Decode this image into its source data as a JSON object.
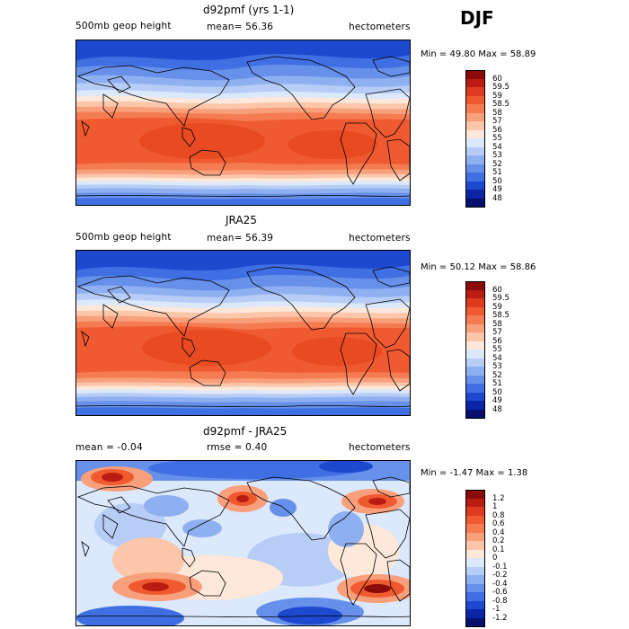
{
  "season": "DJF",
  "panels": [
    {
      "title": "d92pmf (yrs 1-1)",
      "left_label": "500mb geop height",
      "center_label": "mean=  56.36",
      "right_label": "hectometers",
      "stats": "Min =  49.80 Max =  58.89",
      "colorbar": {
        "labels": [
          "60",
          "59.5",
          "59",
          "58.5",
          "58",
          "57",
          "56",
          "55",
          "54",
          "53",
          "52",
          "51",
          "50",
          "49",
          "48"
        ],
        "colors": [
          "#8b0a0a",
          "#b81c12",
          "#de3a1f",
          "#f05a30",
          "#f57c52",
          "#f8a07c",
          "#fbc6aa",
          "#fde8da",
          "#dce8fb",
          "#b7cdf6",
          "#8fb0f0",
          "#6690ea",
          "#3f6fe2",
          "#1d49cf",
          "#0c24a6",
          "#070f6e"
        ]
      }
    },
    {
      "title": "JRA25",
      "left_label": "500mb geop height",
      "center_label": "mean=  56.39",
      "right_label": "hectometers",
      "stats": "Min =  50.12 Max =  58.86",
      "colorbar": {
        "labels": [
          "60",
          "59.5",
          "59",
          "58.5",
          "58",
          "57",
          "56",
          "55",
          "54",
          "53",
          "52",
          "51",
          "50",
          "49",
          "48"
        ],
        "colors": [
          "#8b0a0a",
          "#b81c12",
          "#de3a1f",
          "#f05a30",
          "#f57c52",
          "#f8a07c",
          "#fbc6aa",
          "#fde8da",
          "#dce8fb",
          "#b7cdf6",
          "#8fb0f0",
          "#6690ea",
          "#3f6fe2",
          "#1d49cf",
          "#0c24a6",
          "#070f6e"
        ]
      }
    },
    {
      "title": "d92pmf - JRA25",
      "left_label": "mean =   -0.04",
      "center_label": "rmse =    0.40",
      "right_label": "hectometers",
      "stats": "Min =  -1.47 Max =    1.38",
      "colorbar": {
        "labels": [
          "1.2",
          "1",
          "0.8",
          "0.6",
          "0.4",
          "0.2",
          "0.1",
          "0",
          "-0.1",
          "-0.2",
          "-0.4",
          "-0.6",
          "-0.8",
          "-1",
          "-1.2"
        ],
        "colors": [
          "#8b0a0a",
          "#b81c12",
          "#de3a1f",
          "#f05a30",
          "#f57c52",
          "#f8a07c",
          "#fbc6aa",
          "#fde8da",
          "#dce8fb",
          "#b7cdf6",
          "#8fb0f0",
          "#6690ea",
          "#3f6fe2",
          "#1d49cf",
          "#0c24a6",
          "#070f6e"
        ]
      }
    }
  ]
}
